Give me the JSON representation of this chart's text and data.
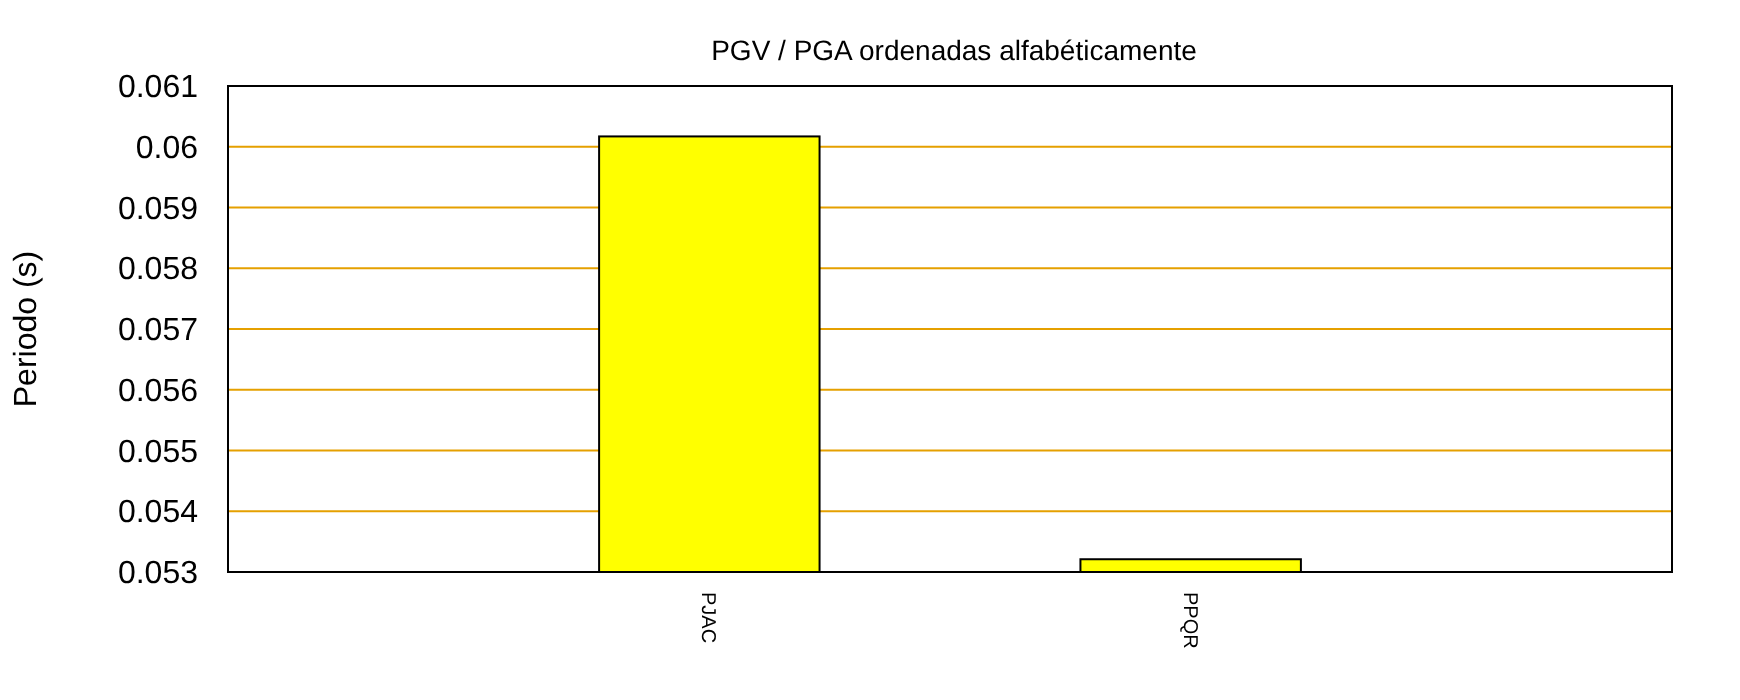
{
  "chart_data": {
    "type": "bar",
    "title": "PGV / PGA ordenadas alfabéticamente",
    "ylabel": "Periodo (s)",
    "categories": [
      "PJAC",
      "PPQR"
    ],
    "values": [
      0.06017,
      0.05321
    ],
    "color": "#ffff00",
    "ylim": [
      0.053,
      0.061
    ],
    "yticks": [
      0.053,
      0.054,
      0.055,
      0.056,
      0.057,
      0.058,
      0.059,
      0.06,
      0.061
    ],
    "grid": "y"
  }
}
